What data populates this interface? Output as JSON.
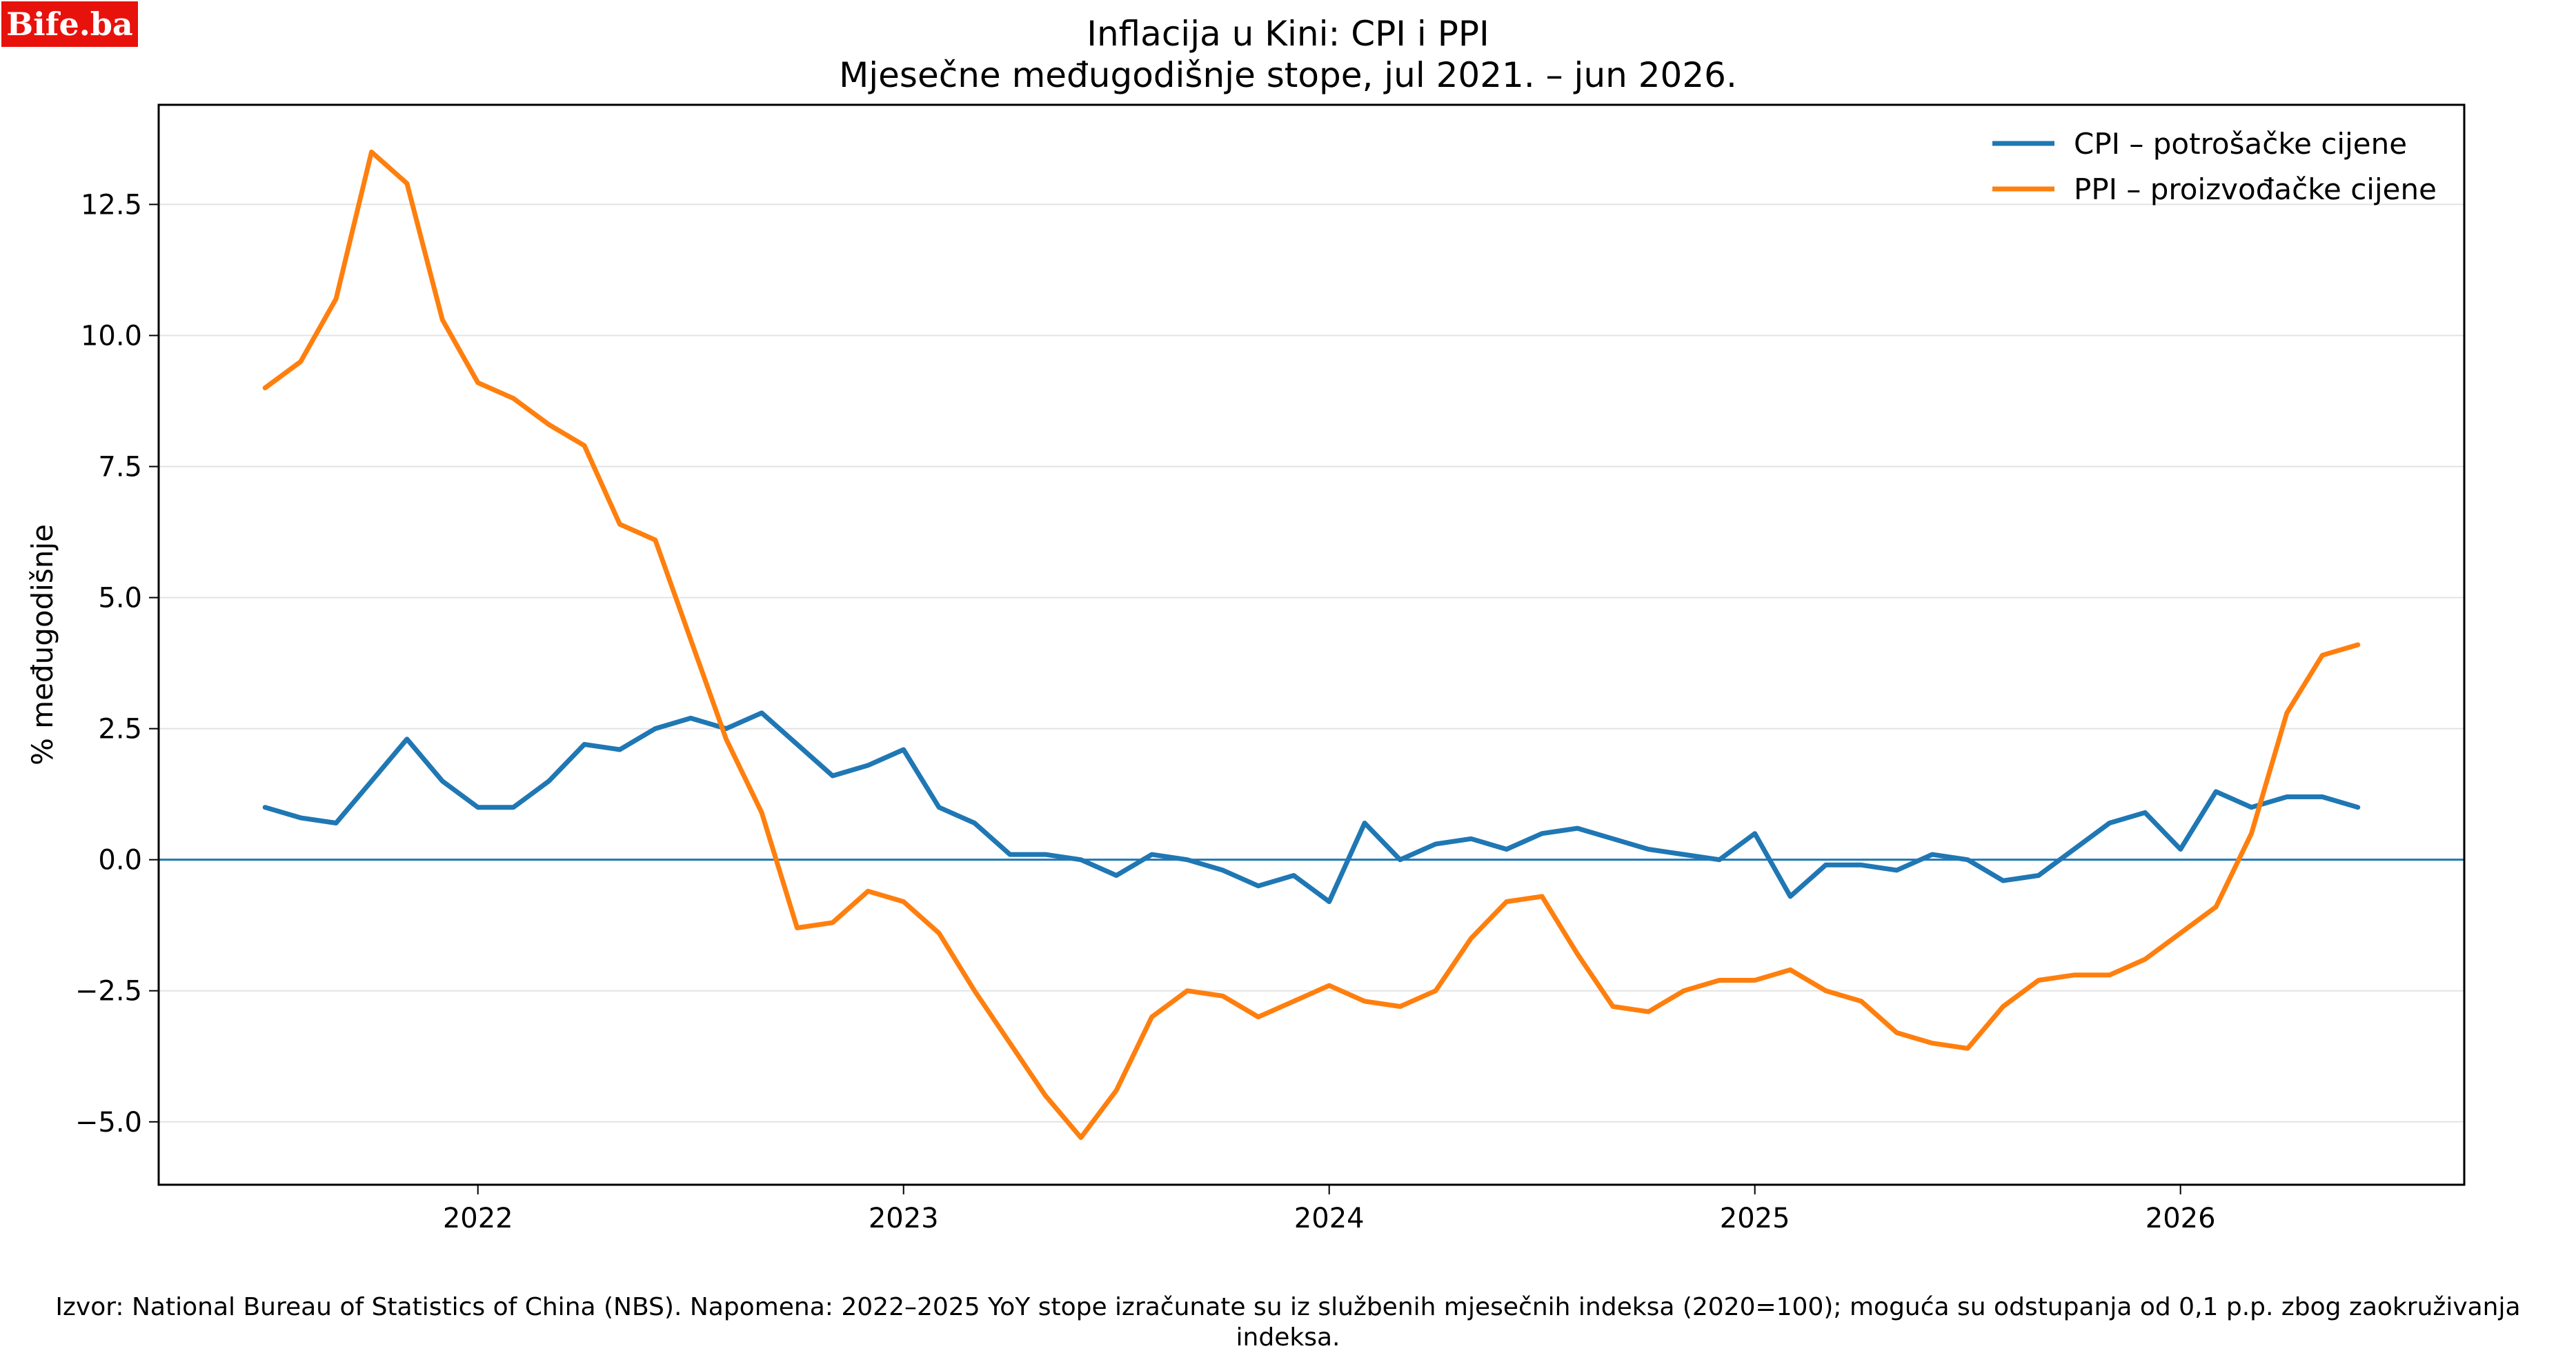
{
  "logo": {
    "text": "Bife.ba"
  },
  "chart_data": {
    "type": "line",
    "title": "Inflacija u Kini: CPI i PPI",
    "subtitle": "Mjesečne međugodišnje stope, jul 2021. – jun 2026.",
    "xlabel": "",
    "ylabel": "% međugodišnje",
    "x_start": "2021-07",
    "x_end": "2026-06",
    "xlim": [
      "2021-04",
      "2026-09"
    ],
    "ylim": [
      -6.2,
      14.4
    ],
    "y_ticks": [
      -5.0,
      -2.5,
      0.0,
      2.5,
      5.0,
      7.5,
      10.0,
      12.5
    ],
    "y_tick_labels": [
      "−5.0",
      "−2.5",
      "0.0",
      "2.5",
      "5.0",
      "7.5",
      "10.0",
      "12.5"
    ],
    "x_ticks": [
      "2022-01",
      "2023-01",
      "2024-01",
      "2025-01",
      "2026-01"
    ],
    "x_tick_labels": [
      "2022",
      "2023",
      "2024",
      "2025",
      "2026"
    ],
    "zero_line": true,
    "grid": "horizontal",
    "legend_position": "top-right",
    "series": [
      {
        "name": "CPI – potrošačke cijene",
        "color": "#1f77b4",
        "values": [
          1.0,
          0.8,
          0.7,
          1.5,
          2.3,
          1.5,
          1.0,
          1.0,
          1.5,
          2.2,
          2.1,
          2.5,
          2.7,
          2.5,
          2.8,
          2.2,
          1.6,
          1.8,
          2.1,
          1.0,
          0.7,
          0.1,
          0.1,
          0.0,
          -0.3,
          0.1,
          0.0,
          -0.2,
          -0.5,
          -0.3,
          -0.8,
          0.7,
          0.0,
          0.3,
          0.4,
          0.2,
          0.5,
          0.6,
          0.4,
          0.2,
          0.1,
          0.0,
          0.5,
          -0.7,
          -0.1,
          -0.1,
          -0.2,
          0.1,
          0.0,
          -0.4,
          -0.3,
          0.2,
          0.7,
          0.9,
          0.2,
          1.3,
          1.0,
          1.2,
          1.2,
          1.0
        ]
      },
      {
        "name": "PPI – proizvođačke cijene",
        "color": "#ff7f0e",
        "values": [
          9.0,
          9.5,
          10.7,
          13.5,
          12.9,
          10.3,
          9.1,
          8.8,
          8.3,
          7.9,
          6.4,
          6.1,
          4.2,
          2.3,
          0.9,
          -1.3,
          -1.2,
          -0.6,
          -0.8,
          -1.4,
          -2.5,
          -3.5,
          -4.5,
          -5.3,
          -4.4,
          -3.0,
          -2.5,
          -2.6,
          -3.0,
          -2.7,
          -2.4,
          -2.7,
          -2.8,
          -2.5,
          -1.5,
          -0.8,
          -0.7,
          -1.8,
          -2.8,
          -2.9,
          -2.5,
          -2.3,
          -2.3,
          -2.1,
          -2.5,
          -2.7,
          -3.3,
          -3.5,
          -3.6,
          -2.8,
          -2.3,
          -2.2,
          -2.2,
          -1.9,
          -1.4,
          -0.9,
          0.5,
          2.8,
          3.9,
          4.1
        ]
      }
    ]
  },
  "footer": {
    "text": "Izvor: National Bureau of Statistics of China (NBS). Napomena: 2022–2025 YoY stope izračunate su iz službenih mjesečnih indeksa (2020=100); moguća su odstupanja od 0,1 p.p. zbog zaokruživanja indeksa."
  }
}
